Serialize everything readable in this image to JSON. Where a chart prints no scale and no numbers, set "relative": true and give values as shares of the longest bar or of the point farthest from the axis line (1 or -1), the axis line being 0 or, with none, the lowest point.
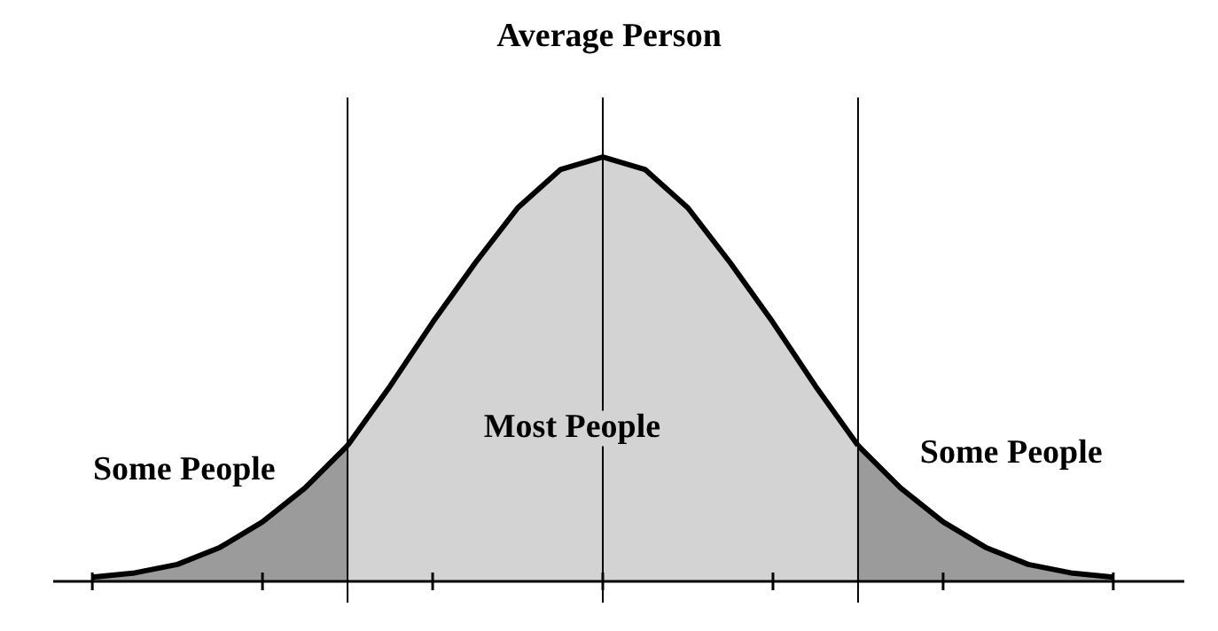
{
  "chart_data": {
    "type": "area",
    "title": "Average Person",
    "relative": true,
    "marker": "none",
    "grid": "x",
    "categories": [
      null,
      null,
      null,
      null,
      null,
      null,
      null,
      null,
      null,
      null,
      null,
      null,
      null,
      null,
      null,
      null,
      null,
      null,
      null,
      null,
      null,
      null,
      null,
      null,
      null
    ],
    "series": [
      {
        "type": "area",
        "color": "#9b9b9b",
        "values": [
          0.01,
          0.02,
          0.04,
          0.08,
          0.14,
          0.22,
          0.32,
          null,
          null,
          null,
          null,
          null,
          null,
          null,
          null,
          null,
          null,
          null,
          null,
          null,
          null,
          null,
          null,
          null,
          null
        ]
      },
      {
        "type": "area",
        "color": "#d3d3d3",
        "values": [
          null,
          null,
          null,
          null,
          null,
          null,
          0.32,
          0.46,
          0.61,
          0.75,
          0.88,
          0.97,
          1,
          0.97,
          0.88,
          0.75,
          0.61,
          0.46,
          0.32,
          null,
          null,
          null,
          null,
          null,
          null
        ]
      },
      {
        "type": "area",
        "color": "#9b9b9b",
        "values": [
          null,
          null,
          null,
          null,
          null,
          null,
          null,
          null,
          null,
          null,
          null,
          null,
          null,
          null,
          null,
          null,
          null,
          null,
          0.32,
          0.22,
          0.14,
          0.08,
          0.04,
          0.02,
          0.01
        ]
      }
    ],
    "annotations": [
      "Some People",
      "Most People",
      "Some People"
    ]
  }
}
